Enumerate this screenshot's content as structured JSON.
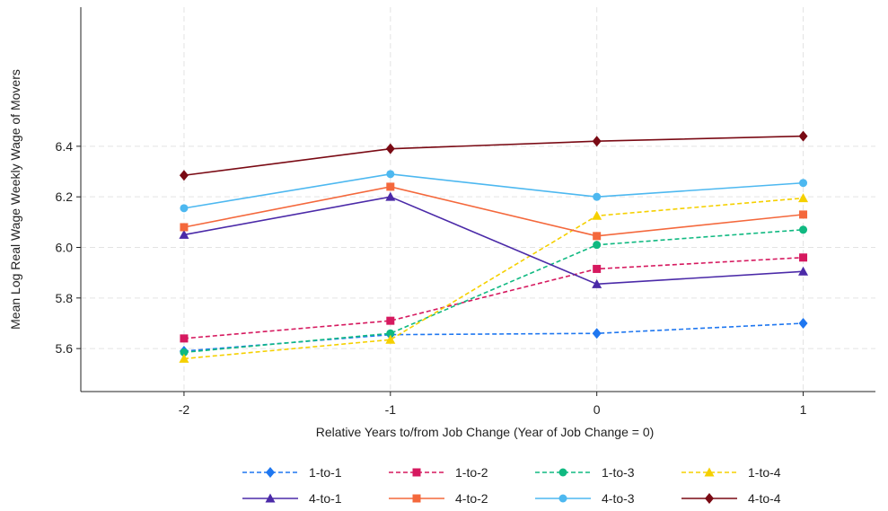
{
  "chart_data": {
    "type": "line",
    "title": "",
    "xlabel": "Relative Years to/from Job Change (Year of Job Change = 0)",
    "ylabel": "Mean Log Real Wage Weekly Wage of Movers",
    "x": [
      -2,
      -1,
      0,
      1
    ],
    "xticks": [
      "-2",
      "-1",
      "0",
      "1"
    ],
    "yticks": [
      "5.6",
      "5.8",
      "6.0",
      "6.2",
      "6.4"
    ],
    "xlim": [
      -2.5,
      1.35
    ],
    "ylim": [
      5.43,
      6.95
    ],
    "grid": true,
    "legend_position": "bottom",
    "series": [
      {
        "name": "1-to-1",
        "color": "#1f77f0",
        "dash": true,
        "marker": "diamond",
        "values": [
          5.59,
          5.655,
          5.66,
          5.7
        ]
      },
      {
        "name": "1-to-2",
        "color": "#d6195f",
        "dash": true,
        "marker": "square",
        "values": [
          5.64,
          5.71,
          5.915,
          5.96
        ]
      },
      {
        "name": "1-to-3",
        "color": "#10b981",
        "dash": true,
        "marker": "circle",
        "values": [
          5.585,
          5.66,
          6.01,
          6.07
        ]
      },
      {
        "name": "1-to-4",
        "color": "#f5d000",
        "dash": true,
        "marker": "triangle",
        "values": [
          5.56,
          5.635,
          6.125,
          6.195
        ]
      },
      {
        "name": "4-to-1",
        "color": "#4b2aa8",
        "dash": false,
        "marker": "triangle",
        "values": [
          6.05,
          6.2,
          5.855,
          5.905
        ]
      },
      {
        "name": "4-to-2",
        "color": "#f4683c",
        "dash": false,
        "marker": "square",
        "values": [
          6.08,
          6.24,
          6.045,
          6.13
        ]
      },
      {
        "name": "4-to-3",
        "color": "#4db8f0",
        "dash": false,
        "marker": "circle",
        "values": [
          6.155,
          6.29,
          6.2,
          6.255
        ]
      },
      {
        "name": "4-to-4",
        "color": "#7a0a14",
        "dash": false,
        "marker": "diamond",
        "values": [
          6.285,
          6.39,
          6.42,
          6.44
        ]
      }
    ]
  }
}
